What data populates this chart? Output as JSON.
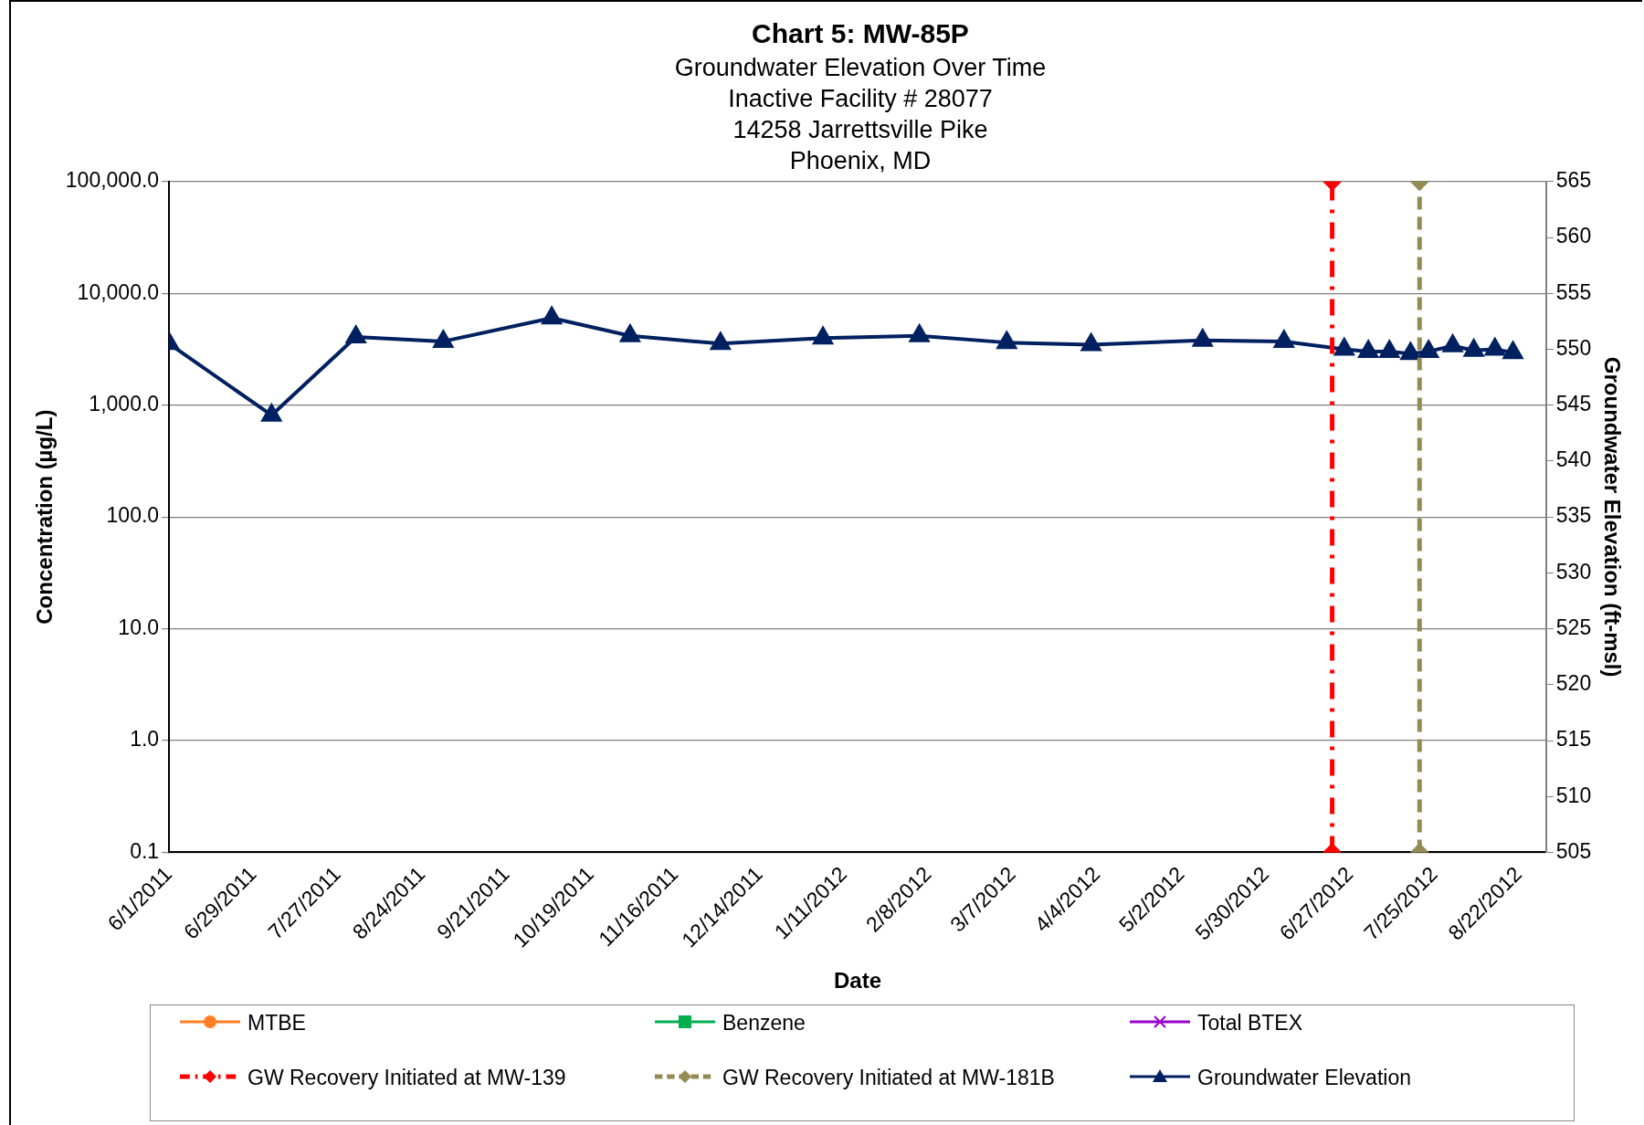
{
  "chart_data": {
    "type": "line",
    "title": "Chart 5: MW-85P",
    "subtitle": "Groundwater Elevation Over Time\nInactive Facility # 28077\n14258 Jarrettsville Pike\nPhoenix, MD",
    "xlabel": "Date",
    "ylabel": "Concentration (µg/L)",
    "y2label": "Groundwater Elevation (ft-msl)",
    "x": [
      "2011-06-01",
      "2011-07-05",
      "2011-08-02",
      "2011-08-31",
      "2011-10-06",
      "2011-11-01",
      "2011-12-01",
      "2012-01-04",
      "2012-02-05",
      "2012-03-05",
      "2012-04-02",
      "2012-05-09",
      "2012-06-05",
      "2012-06-25",
      "2012-07-03",
      "2012-07-10",
      "2012-07-17",
      "2012-07-23",
      "2012-07-31",
      "2012-08-07",
      "2012-08-14",
      "2012-08-20"
    ],
    "series": [
      {
        "name": "MTBE",
        "color": "#ff7f27",
        "marker": "circle",
        "values": [
          null,
          null,
          null,
          null,
          null,
          null,
          null,
          null,
          null,
          null,
          null,
          null,
          null,
          null,
          null,
          null,
          null,
          null,
          null,
          null,
          null,
          null
        ]
      },
      {
        "name": "Benzene",
        "color": "#00b050",
        "marker": "square",
        "values": [
          null,
          null,
          null,
          null,
          null,
          null,
          null,
          null,
          null,
          null,
          null,
          null,
          null,
          null,
          null,
          null,
          null,
          null,
          null,
          null,
          null,
          null
        ]
      },
      {
        "name": "Total BTEX",
        "color": "#9900cc",
        "marker": "cross",
        "values": [
          null,
          null,
          null,
          null,
          null,
          null,
          null,
          null,
          null,
          null,
          null,
          null,
          null,
          null,
          null,
          null,
          null,
          null,
          null,
          null,
          null,
          null
        ]
      },
      {
        "name": "GW Recovery Initiated at MW-139",
        "color": "#ff0000",
        "type": "line",
        "marker": "diamond",
        "line_style": "dashdot",
        "x": [
          "2012-06-21",
          "2012-06-21"
        ],
        "values": [
          0.1,
          100000
        ]
      },
      {
        "name": "GW Recovery Initiated at MW-181B",
        "color": "#948a54",
        "type": "line",
        "marker": "diamond",
        "line_style": "dashed",
        "x": [
          "2012-07-20",
          "2012-07-20"
        ],
        "values": [
          0.1,
          100000
        ]
      },
      {
        "name": "Groundwater Elevation",
        "color": "#002060",
        "axis": "y2",
        "values": [
          550.5,
          544.1,
          551.1,
          550.7,
          552.8,
          551.2,
          550.5,
          551.0,
          551.2,
          550.6,
          550.4,
          550.8,
          550.7,
          550.0,
          549.8,
          549.8,
          549.6,
          549.8,
          550.3,
          549.9,
          550.0,
          549.7
        ]
      }
    ],
    "xlim": [
      "2011-06-01",
      "2012-08-31"
    ],
    "xticks": [
      {
        "value": "2011-06-01",
        "label": "6/1/2011"
      },
      {
        "value": "2011-06-29",
        "label": "6/29/2011"
      },
      {
        "value": "2011-07-27",
        "label": "7/27/2011"
      },
      {
        "value": "2011-08-24",
        "label": "8/24/2011"
      },
      {
        "value": "2011-09-21",
        "label": "9/21/2011"
      },
      {
        "value": "2011-10-19",
        "label": "10/19/2011"
      },
      {
        "value": "2011-11-16",
        "label": "11/16/2011"
      },
      {
        "value": "2011-12-14",
        "label": "12/14/2011"
      },
      {
        "value": "2012-01-11",
        "label": "1/11/2012"
      },
      {
        "value": "2012-02-08",
        "label": "2/8/2012"
      },
      {
        "value": "2012-03-07",
        "label": "3/7/2012"
      },
      {
        "value": "2012-04-04",
        "label": "4/4/2012"
      },
      {
        "value": "2012-05-02",
        "label": "5/2/2012"
      },
      {
        "value": "2012-05-30",
        "label": "5/30/2012"
      },
      {
        "value": "2012-06-27",
        "label": "6/27/2012"
      },
      {
        "value": "2012-07-25",
        "label": "7/25/2012"
      },
      {
        "value": "2012-08-22",
        "label": "8/22/2012"
      }
    ],
    "log": "y",
    "ylim": [
      0.1,
      100000
    ],
    "yticks": [
      {
        "value": 0.1,
        "label": "0.1"
      },
      {
        "value": 1,
        "label": "1.0"
      },
      {
        "value": 10,
        "label": "10.0"
      },
      {
        "value": 100,
        "label": "100.0"
      },
      {
        "value": 1000,
        "label": "1,000.0"
      },
      {
        "value": 10000,
        "label": "10,000.0"
      },
      {
        "value": 100000,
        "label": "100,000.0"
      }
    ],
    "y2lim": [
      505,
      565
    ],
    "y2ticks": [
      505,
      510,
      515,
      520,
      525,
      530,
      535,
      540,
      545,
      550,
      555,
      560,
      565
    ],
    "grid": "y",
    "legend": "bottom",
    "marker": "triangle",
    "line_style": "solid"
  }
}
